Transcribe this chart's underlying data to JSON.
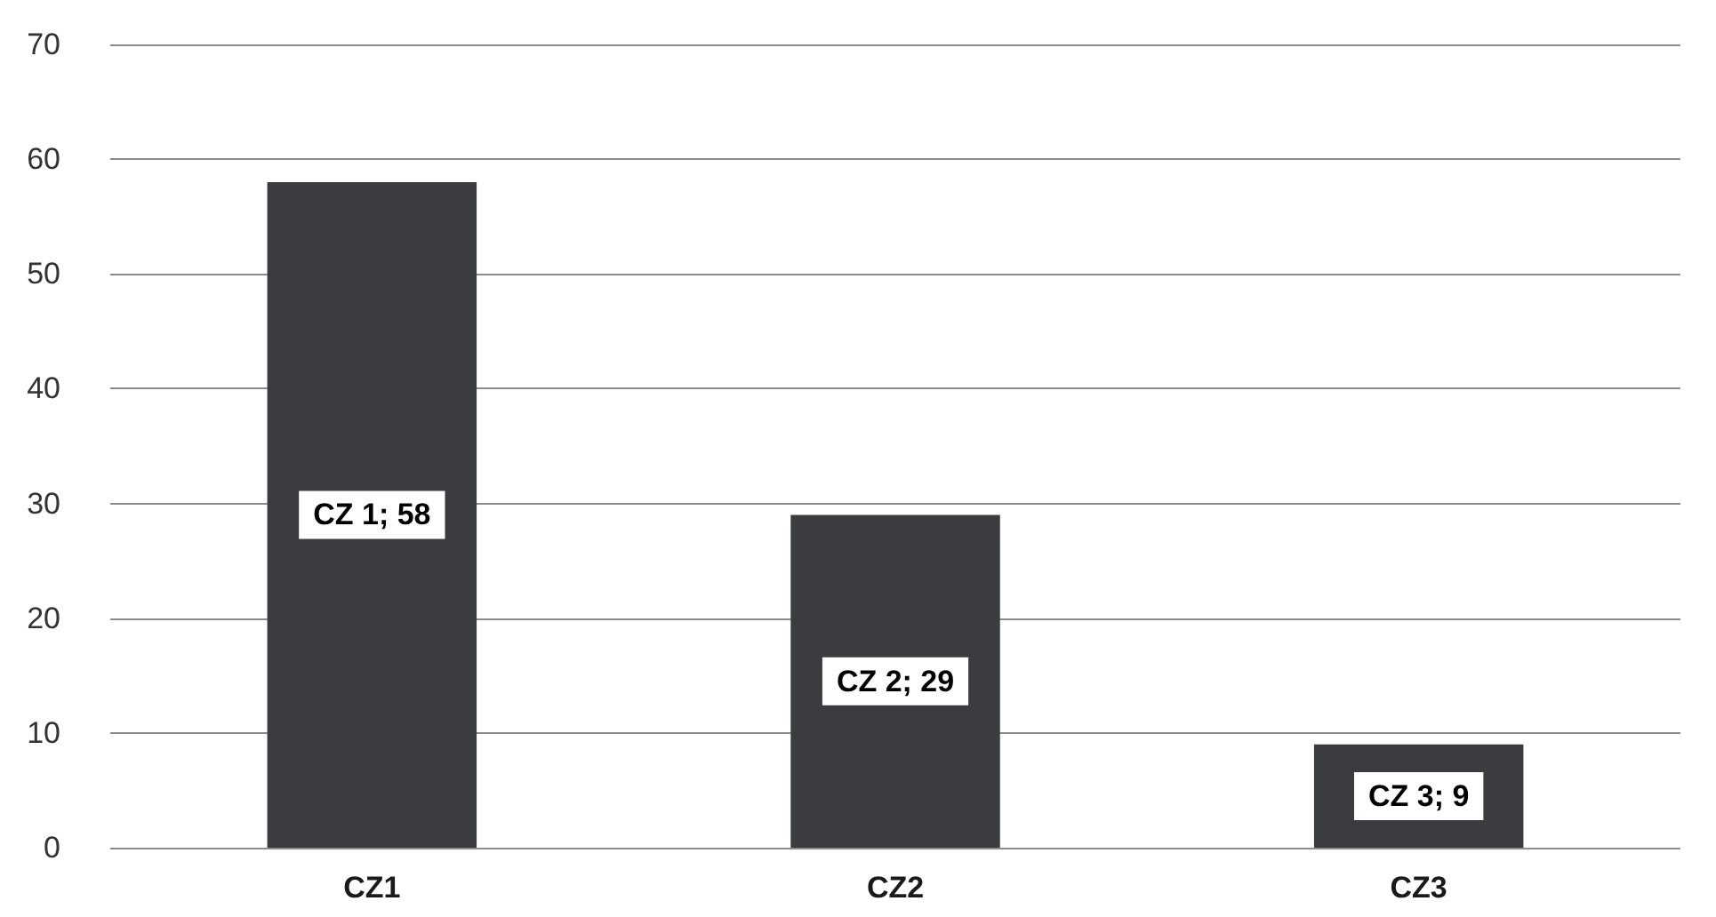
{
  "chart_data": {
    "type": "bar",
    "categories": [
      "CZ1",
      "CZ2",
      "CZ3"
    ],
    "values": [
      58,
      29,
      9
    ],
    "value_labels": [
      "CZ 1; 58",
      "CZ 2; 29",
      "CZ 3; 9"
    ],
    "color": "#3a3c3f",
    "ylim": [
      0,
      70
    ],
    "yticks": [
      0,
      10,
      20,
      30,
      40,
      50,
      60,
      70
    ],
    "grid": "y"
  }
}
